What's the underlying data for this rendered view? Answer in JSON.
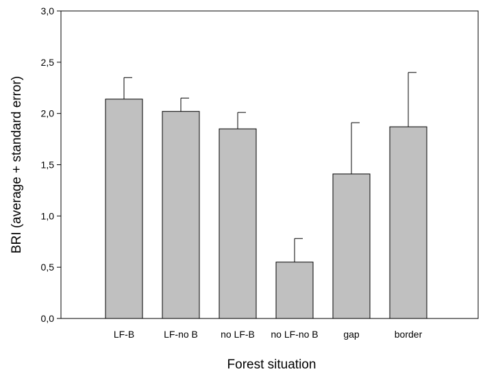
{
  "chart_data": {
    "type": "bar",
    "title": "",
    "xlabel": "Forest situation",
    "ylabel": "BRI (average + standard error)",
    "categories": [
      "LF-B",
      "LF-no B",
      "no LF-B",
      "no LF-no B",
      "gap",
      "border"
    ],
    "values": [
      2.14,
      2.02,
      1.85,
      0.55,
      1.41,
      1.87
    ],
    "errors": [
      0.21,
      0.13,
      0.16,
      0.23,
      0.5,
      0.53
    ],
    "ylim": [
      0,
      3
    ],
    "yticks": [
      0,
      0.5,
      1,
      1.5,
      2,
      2.5,
      3
    ],
    "ytick_labels": [
      "0,0",
      "0,5",
      "1,0",
      "1,5",
      "2,0",
      "2,5",
      "3,0"
    ],
    "grid": false,
    "bar_color": "#c0c0c0",
    "edge_color": "#000000"
  }
}
